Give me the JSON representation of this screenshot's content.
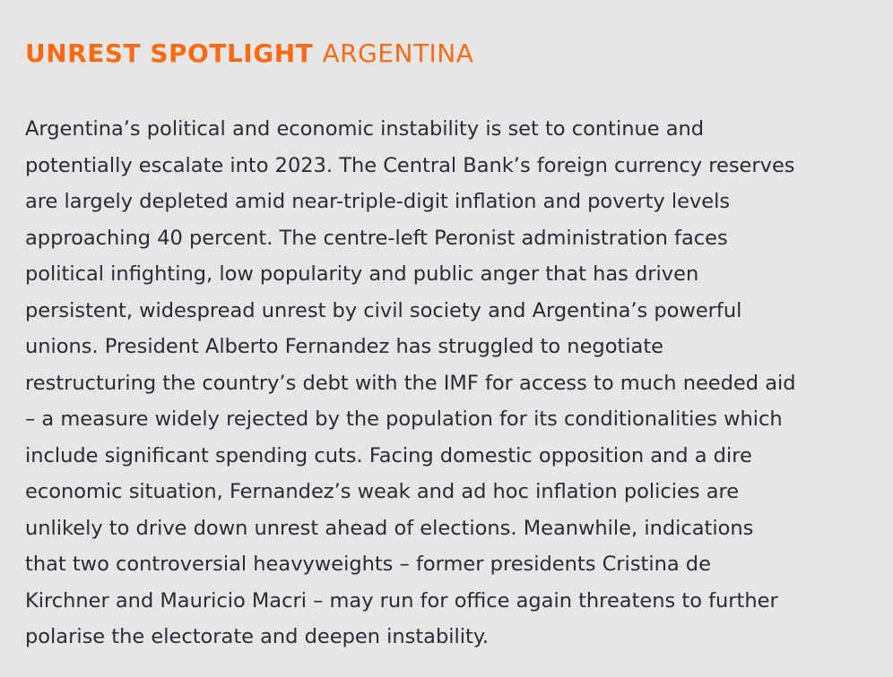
{
  "heading": {
    "bold": "UNREST SPOTLIGHT",
    "light": "ARGENTINA",
    "color": "#ff6a13"
  },
  "body_lines": [
    "Argentina’s political and economic instability is set to continue and",
    "potentially escalate into 2023. The Central Bank’s foreign currency reserves",
    "are largely depleted amid near-triple-digit inflation and poverty levels",
    "approaching 40 percent. The centre-left Peronist administration faces",
    "political infighting, low popularity and public anger that has driven",
    "persistent, widespread unrest by civil society and Argentina’s powerful",
    "unions. President Alberto Fernandez has struggled to negotiate",
    "restructuring the country’s debt with the IMF for access to much needed aid",
    "– a measure widely rejected by the population for its conditionalities which",
    "include significant spending cuts. Facing domestic opposition and a dire",
    "economic situation, Fernandez’s weak and ad hoc inflation policies are",
    "unlikely to drive down unrest ahead of elections. Meanwhile, indications",
    "that two controversial heavyweights – former presidents Cristina de",
    "Kirchner and Mauricio Macri – may run for office again threatens to further",
    "polarise the electorate and deepen instability."
  ]
}
